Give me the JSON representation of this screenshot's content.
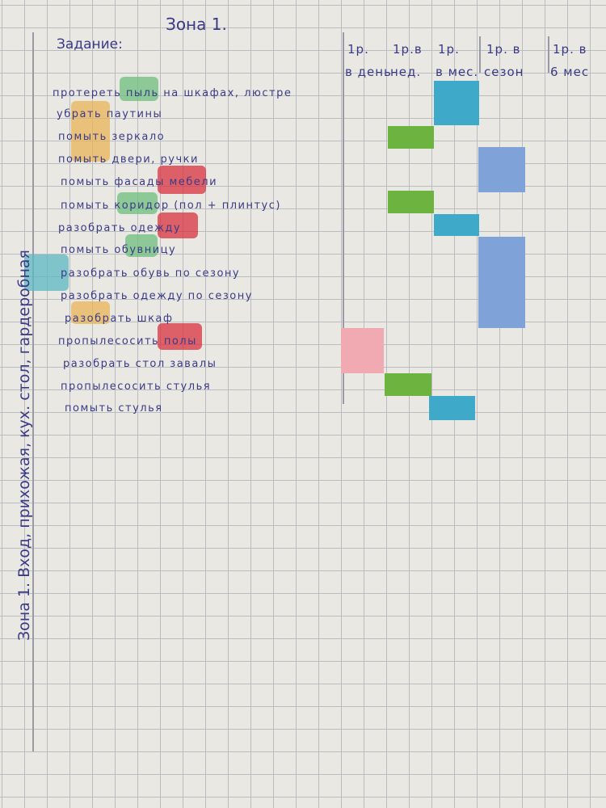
{
  "header": {
    "title": "Зона 1.",
    "task_label": "Задание:"
  },
  "columns": [
    {
      "line1": "1р.",
      "line2": "в день"
    },
    {
      "line1": "1р.в",
      "line2": "нед."
    },
    {
      "line1": "1р.",
      "line2": "в мес."
    },
    {
      "line1": "1р. в",
      "line2": "сезон"
    },
    {
      "line1": "1р. в",
      "line2": "6 мес"
    }
  ],
  "tasks": [
    "протереть пыль на шкафах, люстре",
    "убрать паутины",
    "помыть зеркало",
    "помыть двери, ручки",
    "помыть фасады мебели",
    "помыть коридор (пол + плинтус)",
    "разобрать одежду",
    "помыть обувницу",
    "разобрать обувь по сезону",
    "разобрать одежду по сезону",
    "разобрать шкаф",
    "пропылесосить полы",
    "разобрать стол завалы",
    "пропылесосить стулья",
    "помыть стулья"
  ],
  "side_note": "Зона 1. Вход, прихожая, кух. стол, гардеробная"
}
